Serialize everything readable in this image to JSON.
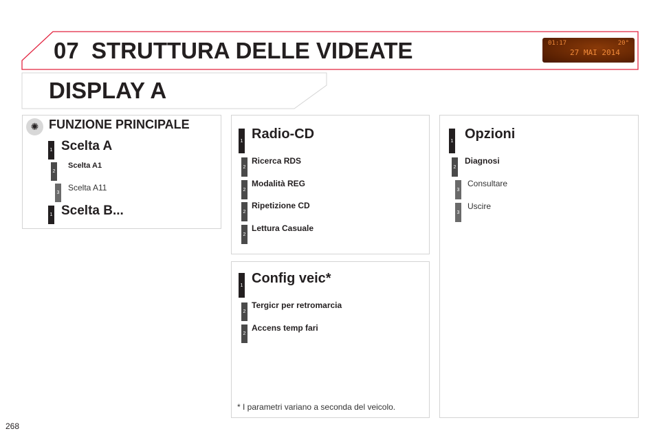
{
  "header": {
    "chapter": "07",
    "title": "STRUTTURA DELLE VIDEATE",
    "accent": "#e2233f",
    "display": {
      "time": "01:17",
      "temperature": "20°",
      "date": "27 MAI 2014"
    }
  },
  "section_title": "DISPLAY A",
  "main_function": {
    "icon": "light-bulb-icon",
    "title": "FUNZIONE PRINCIPALE",
    "items": [
      {
        "level": "1",
        "label": "Scelta A"
      },
      {
        "level": "2",
        "label": "Scelta A1"
      },
      {
        "level": "3",
        "label": "Scelta A11"
      },
      {
        "level": "1",
        "label": "Scelta B..."
      }
    ]
  },
  "radio_cd": {
    "items": [
      {
        "level": "1",
        "label": "Radio-CD"
      },
      {
        "level": "2",
        "label": "Ricerca RDS"
      },
      {
        "level": "2",
        "label": "Modalità REG"
      },
      {
        "level": "2",
        "label": "Ripetizione CD"
      },
      {
        "level": "2",
        "label": "Lettura Casuale"
      }
    ]
  },
  "config": {
    "items": [
      {
        "level": "1",
        "label": "Config veic*"
      },
      {
        "level": "2",
        "label": "Tergicr per retromarcia"
      },
      {
        "level": "2",
        "label": "Accens temp fari"
      }
    ],
    "footnote": "* I parametri variano a seconda del veicolo."
  },
  "options": {
    "items": [
      {
        "level": "1",
        "label": "Opzioni"
      },
      {
        "level": "2",
        "label": "Diagnosi"
      },
      {
        "level": "3",
        "label": "Consultare"
      },
      {
        "level": "3",
        "label": "Uscire"
      }
    ]
  },
  "page_number": "268"
}
